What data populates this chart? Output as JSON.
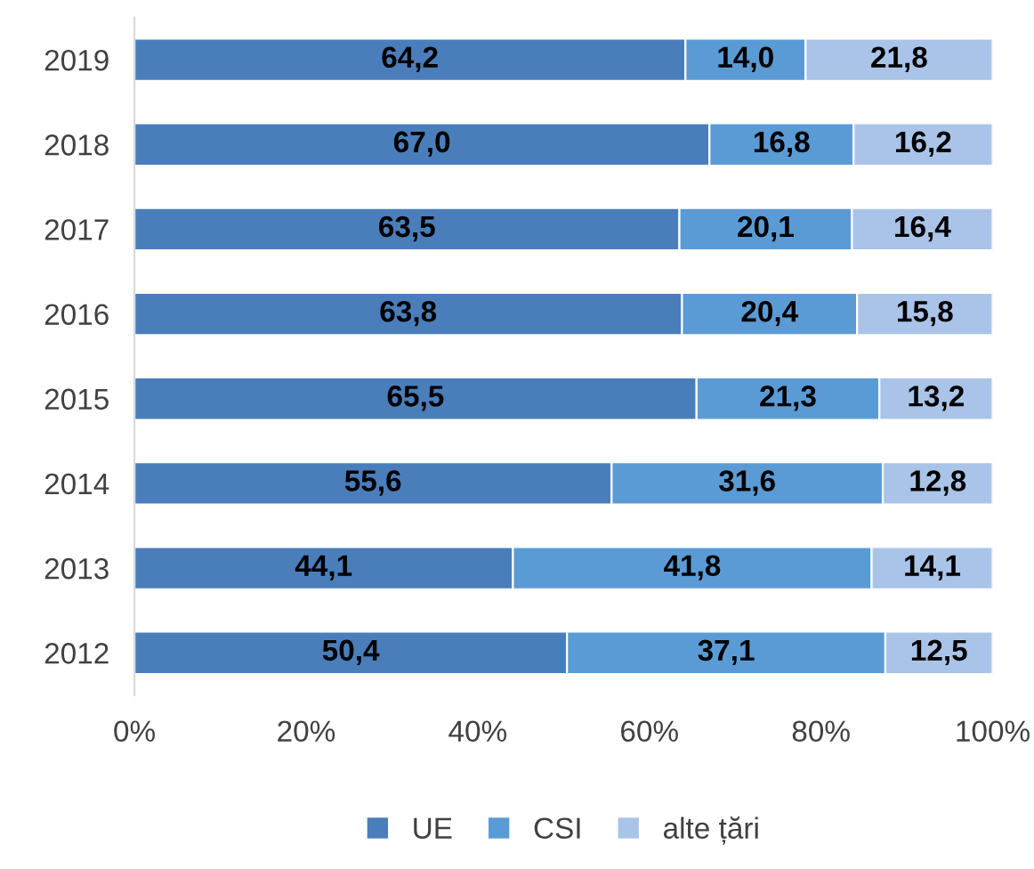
{
  "chart_data": {
    "type": "bar",
    "orientation": "horizontal",
    "stacked": true,
    "categories": [
      "2019",
      "2018",
      "2017",
      "2016",
      "2015",
      "2014",
      "2013",
      "2012"
    ],
    "series": [
      {
        "name": "UE",
        "color": "#4a7ebb",
        "values": [
          64.2,
          67.0,
          63.5,
          63.8,
          65.5,
          55.6,
          44.1,
          50.4
        ],
        "value_labels": [
          "64,2",
          "67,0",
          "63,5",
          "63,8",
          "65,5",
          "55,6",
          "44,1",
          "50,4"
        ]
      },
      {
        "name": "CSI",
        "color": "#5b9bd5",
        "values": [
          14.0,
          16.8,
          20.1,
          20.4,
          21.3,
          31.6,
          41.8,
          37.1
        ],
        "value_labels": [
          "14,0",
          "16,8",
          "20,1",
          "20,4",
          "21,3",
          "31,6",
          "41,8",
          "37,1"
        ]
      },
      {
        "name": "alte țări",
        "color": "#a9c4e8",
        "values": [
          21.8,
          16.2,
          16.4,
          15.8,
          13.2,
          12.8,
          14.1,
          12.5
        ],
        "value_labels": [
          "21,8",
          "16,2",
          "16,4",
          "15,8",
          "13,2",
          "12,8",
          "14,1",
          "12,5"
        ]
      }
    ],
    "xlim": [
      0,
      100
    ],
    "xticks": [
      {
        "value": 0,
        "label": "0%"
      },
      {
        "value": 20,
        "label": "20%"
      },
      {
        "value": 40,
        "label": "40%"
      },
      {
        "value": 60,
        "label": "60%"
      },
      {
        "value": 80,
        "label": "80%"
      },
      {
        "value": 100,
        "label": "100%"
      }
    ],
    "legend": "bottom",
    "grid": false
  }
}
